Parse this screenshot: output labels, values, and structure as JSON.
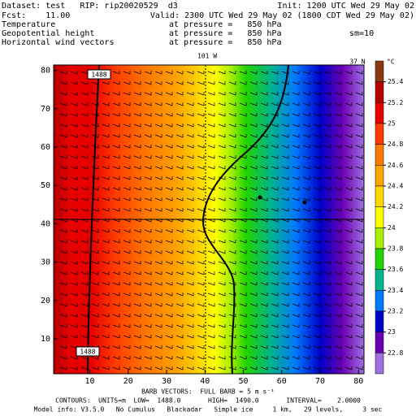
{
  "header": {
    "dataset": "Dataset: test   RIP: rip20020529  d3",
    "init": "Init: 1200 UTC Wed 29 May 02",
    "fcst": "Fcst:    11.00",
    "valid": "Valid: 2300 UTC Wed 29 May 02 (1800 CDT Wed 29 May 02)",
    "fields": [
      {
        "name": "Temperature",
        "level": "at pressure =   850 hPa"
      },
      {
        "name": "Geopotential height",
        "level": "at pressure =   850 hPa",
        "note": "sm=10"
      },
      {
        "name": "Horizontal wind vectors",
        "level": "at pressure =   850 hPa"
      }
    ]
  },
  "map": {
    "top_label": "101 W",
    "corner_label": "37 N",
    "xlim": [
      1,
      81
    ],
    "ylim": [
      1,
      81
    ],
    "xticks": [
      10,
      20,
      30,
      40,
      50,
      60,
      70,
      80
    ],
    "yticks": [
      10,
      20,
      30,
      40,
      50,
      60,
      70,
      80
    ],
    "contour_labels": [
      "1488",
      "1488"
    ]
  },
  "colorbar": {
    "unit": "°C",
    "levels": [
      25.4,
      25.2,
      25,
      24.8,
      24.6,
      24.4,
      24.2,
      24,
      23.8,
      23.6,
      23.4,
      23.2,
      23,
      22.8
    ],
    "colors": [
      "#8b3a0f",
      "#b40000",
      "#e60000",
      "#ff3c00",
      "#ff7800",
      "#ffa500",
      "#ffd700",
      "#ffff00",
      "#a8f000",
      "#22d400",
      "#00b48c",
      "#0078ff",
      "#0000c8",
      "#6a00b4",
      "#a070e0"
    ]
  },
  "footer": {
    "barb": "BARB VECTORS:  FULL BARB = 5 m s⁻¹",
    "contours": "CONTOURS:  UNITS=m  LOW=  1488.0       HIGH=  1490.0       INTERVAL=    2.0000",
    "model": "Model info: V3.5.0   No Cumulus   Blackadar   Simple ice     1 km,   29 levels,     3 sec"
  }
}
